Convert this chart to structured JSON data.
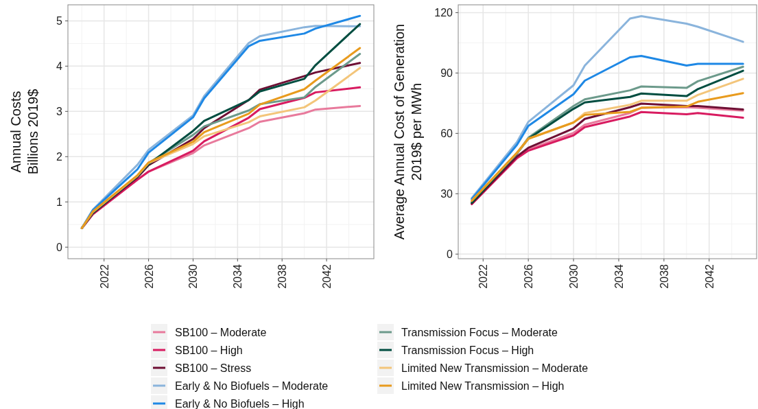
{
  "chart_data": [
    {
      "type": "line",
      "ylabel": "Annual Costs\nBillions 2019$",
      "x": [
        2020,
        2021,
        2025,
        2026,
        2030,
        2031,
        2035,
        2036,
        2040,
        2041,
        2045
      ],
      "xlim": [
        2018.75,
        2046.25
      ],
      "xticks": [
        2022,
        2026,
        2030,
        2034,
        2038,
        2042
      ],
      "ylim": [
        -0.255,
        5.355
      ],
      "yticks": [
        0,
        1,
        2,
        3,
        4,
        5
      ],
      "grid": true,
      "legend": "bottom",
      "line_style": "solid",
      "series": [
        {
          "name": "SB100 – Moderate",
          "color": "#e87a9c",
          "values": [
            0.42,
            0.73,
            1.49,
            1.67,
            2.08,
            2.25,
            2.63,
            2.77,
            2.96,
            3.04,
            3.12
          ]
        },
        {
          "name": "SB100 – High",
          "color": "#d81b60",
          "values": [
            0.42,
            0.73,
            1.49,
            1.67,
            2.13,
            2.34,
            2.86,
            3.05,
            3.3,
            3.42,
            3.53
          ]
        },
        {
          "name": "SB100 – Stress",
          "color": "#6e0f34",
          "values": [
            0.42,
            0.75,
            1.54,
            1.81,
            2.39,
            2.63,
            3.25,
            3.48,
            3.78,
            3.86,
            4.07
          ]
        },
        {
          "name": "Early & No Biofuels – Moderate",
          "color": "#8ab4dc",
          "values": [
            0.42,
            0.83,
            1.82,
            2.15,
            2.91,
            3.34,
            4.51,
            4.66,
            4.86,
            4.89,
            4.88
          ]
        },
        {
          "name": "Early & No Biofuels – High",
          "color": "#1e88e5",
          "values": [
            0.42,
            0.82,
            1.72,
            2.09,
            2.87,
            3.29,
            4.44,
            4.56,
            4.72,
            4.83,
            5.11
          ]
        },
        {
          "name": "Transmission Focus – Moderate",
          "color": "#6c9a8b",
          "values": [
            0.42,
            0.78,
            1.57,
            1.86,
            2.48,
            2.67,
            3.02,
            3.16,
            3.31,
            3.54,
            4.27
          ]
        },
        {
          "name": "Transmission Focus – High",
          "color": "#004d40",
          "values": [
            0.42,
            0.76,
            1.57,
            1.83,
            2.57,
            2.79,
            3.25,
            3.44,
            3.72,
            4.02,
            4.93
          ]
        },
        {
          "name": "Limited New Transmission – Moderate",
          "color": "#f3c57a",
          "values": [
            0.42,
            0.78,
            1.58,
            1.86,
            2.28,
            2.45,
            2.76,
            2.89,
            3.09,
            3.24,
            3.96
          ]
        },
        {
          "name": "Limited New Transmission – High",
          "color": "#e89b1e",
          "values": [
            0.42,
            0.79,
            1.59,
            1.87,
            2.33,
            2.54,
            2.95,
            3.15,
            3.49,
            3.68,
            4.4
          ]
        }
      ]
    },
    {
      "type": "line",
      "ylabel": "Average Annual Cost of Generation\n2019$ per MWh",
      "x": [
        2021,
        2025,
        2026,
        2030,
        2031,
        2035,
        2036,
        2040,
        2041,
        2045
      ],
      "xlim": [
        2019.8,
        2046.2
      ],
      "xticks": [
        2022,
        2026,
        2030,
        2034,
        2038,
        2042
      ],
      "ylim": [
        -2.3,
        123.9
      ],
      "yticks": [
        0,
        30,
        60,
        90,
        120
      ],
      "grid": true,
      "line_style": "solid",
      "series": [
        {
          "color": "#e87a9c",
          "values": [
            25.0,
            47.9,
            52.0,
            60.2,
            64.3,
            70.1,
            72.7,
            73.0,
            72.7,
            71.3
          ]
        },
        {
          "color": "#d81b60",
          "values": [
            24.8,
            47.7,
            51.4,
            59.0,
            63.1,
            68.4,
            70.6,
            69.5,
            70.1,
            67.8
          ]
        },
        {
          "color": "#6e0f34",
          "values": [
            25.2,
            48.5,
            52.8,
            62.5,
            67.2,
            73.0,
            74.8,
            73.6,
            73.6,
            71.9
          ]
        },
        {
          "color": "#8ab4dc",
          "values": [
            27.8,
            55.7,
            65.7,
            83.9,
            93.7,
            117.1,
            118.3,
            114.5,
            113.0,
            105.5
          ]
        },
        {
          "color": "#1e88e5",
          "values": [
            27.3,
            54.3,
            63.7,
            79.5,
            86.2,
            97.8,
            98.5,
            93.7,
            94.6,
            94.6
          ]
        },
        {
          "color": "#6c9a8b",
          "values": [
            26.0,
            50.0,
            57.8,
            73.6,
            76.9,
            81.4,
            83.3,
            82.6,
            85.9,
            93.1
          ]
        },
        {
          "color": "#004d40",
          "values": [
            25.5,
            50.0,
            57.3,
            72.2,
            75.4,
            78.1,
            79.8,
            78.5,
            82.0,
            91.1
          ]
        },
        {
          "color": "#f3c57a",
          "values": [
            26.5,
            50.2,
            57.3,
            65.4,
            70.1,
            74.2,
            76.2,
            76.2,
            79.1,
            87.1
          ]
        },
        {
          "color": "#e89b1e",
          "values": [
            26.5,
            50.5,
            57.3,
            65.4,
            69.2,
            70.7,
            72.7,
            73.3,
            75.7,
            80.0
          ]
        }
      ]
    }
  ]
}
